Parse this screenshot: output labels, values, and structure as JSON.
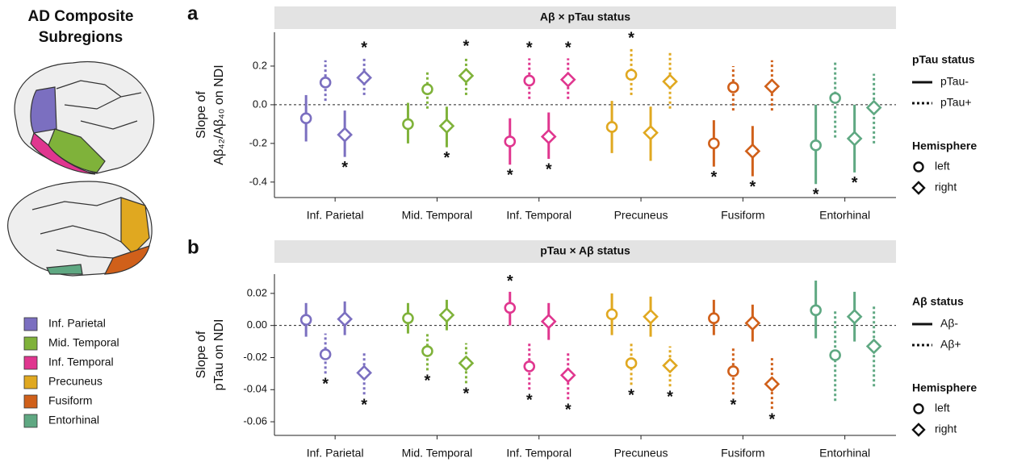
{
  "sidebar": {
    "title_lines": [
      "AD Composite",
      "Subregions"
    ],
    "legend": [
      {
        "label": "Inf. Parietal",
        "color": "#7b6fc0"
      },
      {
        "label": "Mid. Temporal",
        "color": "#7fb23a"
      },
      {
        "label": "Inf. Temporal",
        "color": "#e0368f"
      },
      {
        "label": "Precuneus",
        "color": "#e0a820"
      },
      {
        "label": "Fusiform",
        "color": "#d0601a"
      },
      {
        "label": "Entorhinal",
        "color": "#5fa882"
      }
    ]
  },
  "chart_data": [
    {
      "type": "pointrange",
      "panel_label": "a",
      "title": "Aβ × pTau status",
      "y_label_lines": [
        "Slope of",
        "Aβ₄₂/Aβ₄₀ on NDI"
      ],
      "categories": [
        "Inf. Parietal",
        "Mid. Temporal",
        "Inf. Temporal",
        "Precuneus",
        "Fusiform",
        "Entorhinal"
      ],
      "colors": [
        "#7b6fc0",
        "#7fb23a",
        "#e0368f",
        "#e0a820",
        "#d0601a",
        "#5fa882"
      ],
      "ylim": [
        -0.48,
        0.375
      ],
      "yticks": [
        -0.4,
        -0.2,
        {
          "value": 0,
          "label": "0.0"
        },
        0.2
      ],
      "reference_line": 0,
      "star": "*",
      "legend": {
        "status_title": "pTau status",
        "status": [
          "pTau-",
          "pTau+"
        ],
        "hemisphere_title": "Hemisphere",
        "hemisphere": [
          "left",
          "right"
        ]
      },
      "series": [
        {
          "values": [
            -0.07,
            -0.1,
            -0.19,
            -0.115,
            -0.2,
            -0.21
          ],
          "lower": [
            -0.19,
            -0.2,
            -0.31,
            -0.25,
            -0.32,
            -0.41
          ],
          "upper": [
            0.05,
            0.01,
            -0.07,
            0.02,
            -0.08,
            0.0
          ],
          "significant": [
            false,
            false,
            true,
            false,
            true,
            true
          ]
        },
        {
          "values": [
            0.115,
            0.08,
            0.125,
            0.155,
            0.09,
            0.035
          ],
          "lower": [
            0.02,
            -0.02,
            0.03,
            0.05,
            -0.03,
            -0.17
          ],
          "upper": [
            0.23,
            0.18,
            0.24,
            0.29,
            0.2,
            0.23
          ],
          "significant": [
            false,
            false,
            true,
            true,
            false,
            false
          ]
        },
        {
          "values": [
            -0.155,
            -0.11,
            -0.165,
            -0.145,
            -0.24,
            -0.175
          ],
          "lower": [
            -0.27,
            -0.22,
            -0.28,
            -0.29,
            -0.37,
            -0.35
          ],
          "upper": [
            -0.03,
            -0.01,
            -0.04,
            -0.01,
            -0.11,
            0.0
          ],
          "significant": [
            true,
            true,
            true,
            false,
            true,
            true
          ]
        },
        {
          "values": [
            0.14,
            0.15,
            0.13,
            0.12,
            0.095,
            -0.015
          ],
          "lower": [
            0.05,
            0.05,
            0.03,
            -0.02,
            -0.03,
            -0.2
          ],
          "upper": [
            0.24,
            0.25,
            0.24,
            0.27,
            0.23,
            0.16
          ],
          "significant": [
            true,
            true,
            true,
            false,
            false,
            false
          ]
        }
      ]
    },
    {
      "type": "pointrange",
      "panel_label": "b",
      "title": "pTau × Aβ status",
      "y_label_lines": [
        "Slope of",
        "pTau on NDI"
      ],
      "categories": [
        "Inf. Parietal",
        "Mid. Temporal",
        "Inf. Temporal",
        "Precuneus",
        "Fusiform",
        "Entorhinal"
      ],
      "colors": [
        "#7b6fc0",
        "#7fb23a",
        "#e0368f",
        "#e0a820",
        "#d0601a",
        "#5fa882"
      ],
      "ylim": [
        -0.0685,
        0.032
      ],
      "yticks": [
        -0.06,
        -0.04,
        -0.02,
        {
          "value": 0,
          "label": "0.00"
        },
        0.02
      ],
      "reference_line": 0,
      "star": "*",
      "legend": {
        "status_title": "Aβ status",
        "status": [
          "Aβ-",
          "Aβ+"
        ],
        "hemisphere_title": "Hemisphere",
        "hemisphere": [
          "left",
          "right"
        ]
      },
      "series": [
        {
          "values": [
            0.0035,
            0.0045,
            0.011,
            0.007,
            0.0045,
            0.0095
          ],
          "lower": [
            -0.007,
            -0.005,
            0.0,
            -0.006,
            -0.006,
            -0.008
          ],
          "upper": [
            0.014,
            0.014,
            0.021,
            0.02,
            0.016,
            0.028
          ],
          "significant": [
            false,
            false,
            true,
            false,
            false,
            false
          ]
        },
        {
          "values": [
            -0.018,
            -0.016,
            -0.0255,
            -0.0235,
            -0.0285,
            -0.0185
          ],
          "lower": [
            -0.03,
            -0.028,
            -0.04,
            -0.037,
            -0.043,
            -0.047
          ],
          "upper": [
            -0.005,
            -0.004,
            -0.011,
            -0.01,
            -0.013,
            0.01
          ],
          "significant": [
            true,
            true,
            true,
            true,
            true,
            false
          ]
        },
        {
          "values": [
            0.004,
            0.0065,
            0.0025,
            0.0055,
            0.0015,
            0.0055
          ],
          "lower": [
            -0.006,
            -0.003,
            -0.009,
            -0.007,
            -0.01,
            -0.01
          ],
          "upper": [
            0.015,
            0.016,
            0.014,
            0.018,
            0.013,
            0.021
          ],
          "significant": [
            false,
            false,
            false,
            false,
            false,
            false
          ]
        },
        {
          "values": [
            -0.0295,
            -0.0235,
            -0.031,
            -0.025,
            -0.0365,
            -0.013
          ],
          "lower": [
            -0.043,
            -0.036,
            -0.046,
            -0.038,
            -0.052,
            -0.038
          ],
          "upper": [
            -0.016,
            -0.011,
            -0.016,
            -0.013,
            -0.02,
            0.012
          ],
          "significant": [
            true,
            true,
            true,
            true,
            true,
            false
          ]
        }
      ]
    }
  ]
}
